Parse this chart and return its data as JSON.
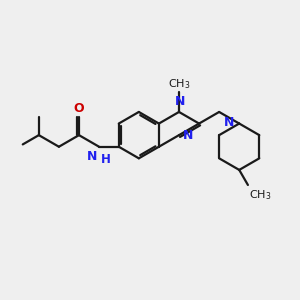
{
  "bg_color": "#efefef",
  "bond_color": "#1a1a1a",
  "n_color": "#2020ee",
  "o_color": "#cc0000",
  "lw": 1.6,
  "fs": 8.5,
  "dpi": 100,
  "xlim": [
    0,
    10
  ],
  "ylim": [
    0,
    10
  ]
}
